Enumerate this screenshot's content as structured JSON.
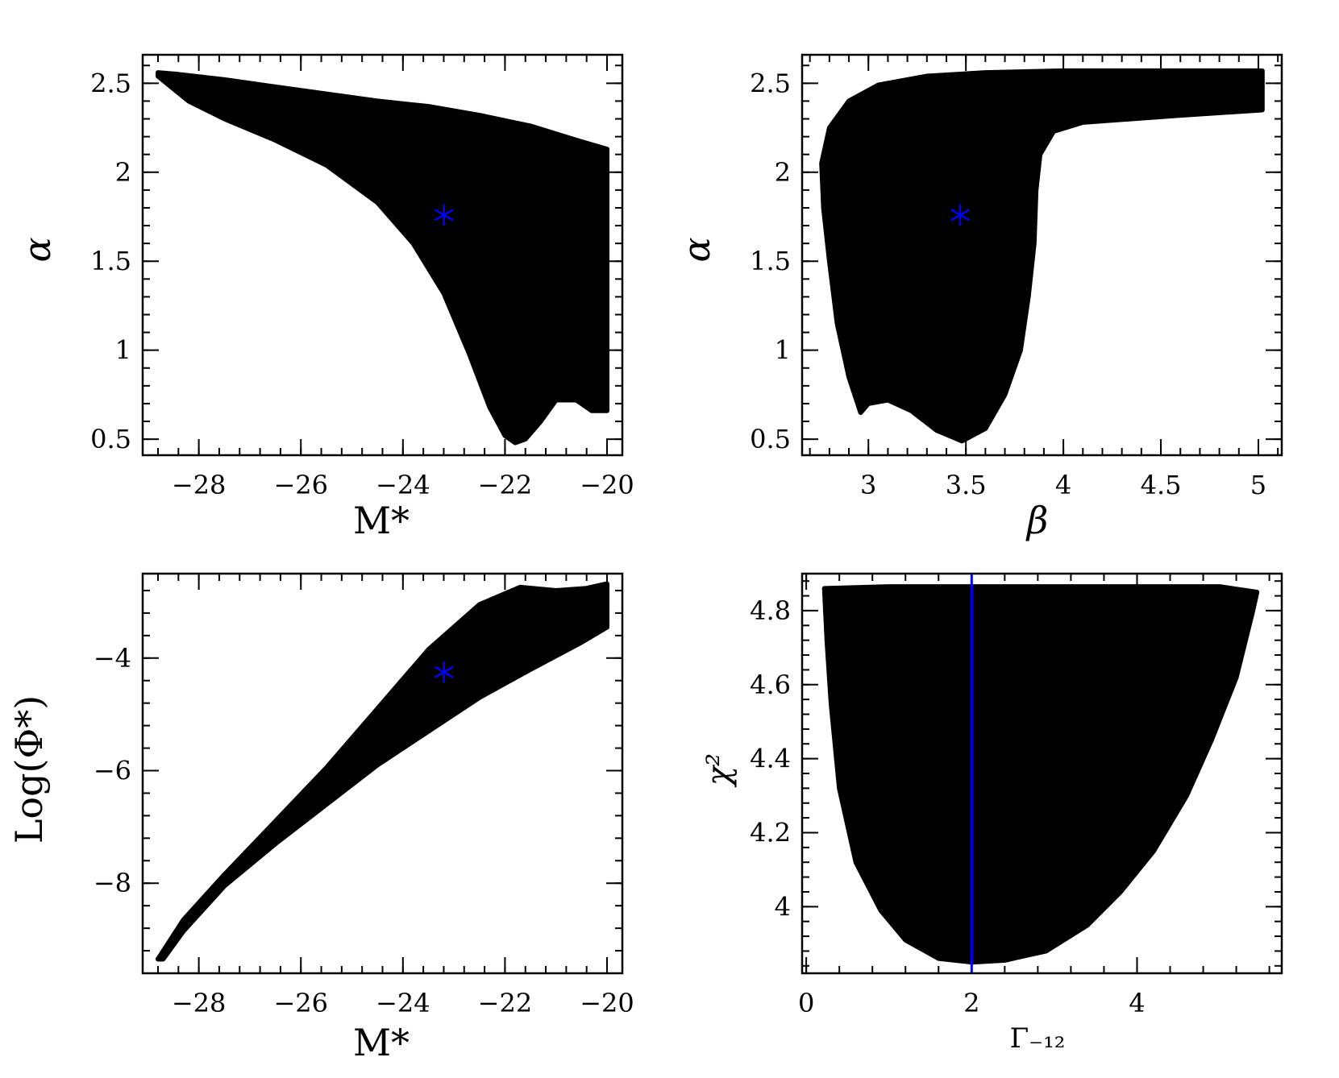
{
  "chart_data": [
    {
      "type": "scatter",
      "xlabel": "M*",
      "ylabel": "α",
      "xlim": [
        -29.1,
        -19.7
      ],
      "ylim": [
        0.41,
        2.66
      ],
      "xticks": [
        -28,
        -26,
        -24,
        -22,
        -20
      ],
      "xtick_labels": [
        "−28",
        "−26",
        "−24",
        "−22",
        "−20"
      ],
      "yticks": [
        0.5,
        1,
        1.5,
        2,
        2.5
      ],
      "ytick_labels": [
        "0.5",
        "1",
        "1.5",
        "2",
        "2.5"
      ],
      "region_color": "#000000",
      "region": [
        [
          -28.8,
          2.56
        ],
        [
          -28.4,
          2.55
        ],
        [
          -27.5,
          2.52
        ],
        [
          -26.5,
          2.48
        ],
        [
          -25.5,
          2.44
        ],
        [
          -24.5,
          2.4
        ],
        [
          -23.5,
          2.37
        ],
        [
          -22.5,
          2.32
        ],
        [
          -21.5,
          2.26
        ],
        [
          -20.6,
          2.18
        ],
        [
          -20.0,
          2.13
        ],
        [
          -20.0,
          0.66
        ],
        [
          -20.3,
          0.66
        ],
        [
          -20.6,
          0.72
        ],
        [
          -21.0,
          0.72
        ],
        [
          -21.3,
          0.6
        ],
        [
          -21.6,
          0.5
        ],
        [
          -21.8,
          0.48
        ],
        [
          -22.0,
          0.52
        ],
        [
          -22.3,
          0.68
        ],
        [
          -22.7,
          0.98
        ],
        [
          -23.2,
          1.32
        ],
        [
          -23.8,
          1.6
        ],
        [
          -24.5,
          1.83
        ],
        [
          -25.5,
          2.04
        ],
        [
          -26.5,
          2.18
        ],
        [
          -27.5,
          2.3
        ],
        [
          -28.2,
          2.4
        ],
        [
          -28.8,
          2.54
        ]
      ],
      "best_fit": {
        "x": -23.2,
        "y": 1.76,
        "color": "#0000ff"
      }
    },
    {
      "type": "scatter",
      "xlabel": "β",
      "ylabel": "α",
      "xlim": [
        2.66,
        5.12
      ],
      "ylim": [
        0.41,
        2.66
      ],
      "xticks": [
        3,
        3.5,
        4,
        4.5,
        5
      ],
      "xtick_labels": [
        "3",
        "3.5",
        "4",
        "4.5",
        "5"
      ],
      "yticks": [
        0.5,
        1,
        1.5,
        2,
        2.5
      ],
      "ytick_labels": [
        "0.5",
        "1",
        "1.5",
        "2",
        "2.5"
      ],
      "region_color": "#000000",
      "region": [
        [
          2.76,
          2.05
        ],
        [
          2.8,
          2.25
        ],
        [
          2.9,
          2.4
        ],
        [
          3.05,
          2.49
        ],
        [
          3.3,
          2.54
        ],
        [
          3.6,
          2.56
        ],
        [
          4.0,
          2.57
        ],
        [
          5.02,
          2.57
        ],
        [
          5.02,
          2.35
        ],
        [
          4.6,
          2.32
        ],
        [
          4.1,
          2.28
        ],
        [
          3.95,
          2.23
        ],
        [
          3.88,
          2.1
        ],
        [
          3.86,
          1.9
        ],
        [
          3.85,
          1.6
        ],
        [
          3.82,
          1.3
        ],
        [
          3.78,
          1.0
        ],
        [
          3.7,
          0.75
        ],
        [
          3.6,
          0.56
        ],
        [
          3.48,
          0.49
        ],
        [
          3.35,
          0.55
        ],
        [
          3.22,
          0.66
        ],
        [
          3.1,
          0.72
        ],
        [
          3.0,
          0.7
        ],
        [
          2.96,
          0.65
        ],
        [
          2.9,
          0.85
        ],
        [
          2.84,
          1.15
        ],
        [
          2.8,
          1.5
        ],
        [
          2.77,
          1.8
        ]
      ],
      "best_fit": {
        "x": 3.47,
        "y": 1.76,
        "color": "#0000ff"
      }
    },
    {
      "type": "scatter",
      "xlabel": "M*",
      "ylabel": "Log(Φ*)",
      "xlim": [
        -29.1,
        -19.7
      ],
      "ylim": [
        -9.6,
        -2.5
      ],
      "xticks": [
        -28,
        -26,
        -24,
        -22,
        -20
      ],
      "xtick_labels": [
        "−28",
        "−26",
        "−24",
        "−22",
        "−20"
      ],
      "yticks": [
        -4,
        -6,
        -8
      ],
      "ytick_labels": [
        "−4",
        "−6",
        "−8"
      ],
      "region_color": "#000000",
      "region": [
        [
          -28.8,
          -9.35
        ],
        [
          -28.3,
          -8.65
        ],
        [
          -27.5,
          -7.85
        ],
        [
          -26.5,
          -6.9
        ],
        [
          -25.5,
          -5.95
        ],
        [
          -24.5,
          -4.9
        ],
        [
          -23.5,
          -3.85
        ],
        [
          -22.5,
          -3.05
        ],
        [
          -21.7,
          -2.74
        ],
        [
          -21.0,
          -2.8
        ],
        [
          -20.4,
          -2.76
        ],
        [
          -20.0,
          -2.68
        ],
        [
          -20.0,
          -3.45
        ],
        [
          -20.5,
          -3.72
        ],
        [
          -21.5,
          -4.2
        ],
        [
          -22.5,
          -4.7
        ],
        [
          -23.5,
          -5.3
        ],
        [
          -24.5,
          -5.9
        ],
        [
          -25.5,
          -6.6
        ],
        [
          -26.5,
          -7.3
        ],
        [
          -27.5,
          -8.05
        ],
        [
          -28.3,
          -8.85
        ],
        [
          -28.7,
          -9.35
        ]
      ],
      "best_fit": {
        "x": -23.2,
        "y": -4.25,
        "color": "#0000ff"
      }
    },
    {
      "type": "scatter",
      "xlabel": "Γ₋₁₂",
      "ylabel": "χ²",
      "xlim": [
        -0.05,
        5.75
      ],
      "ylim": [
        3.82,
        4.9
      ],
      "xticks": [
        0,
        2,
        4
      ],
      "xtick_labels": [
        "0",
        "2",
        "4"
      ],
      "yticks": [
        4,
        4.2,
        4.4,
        4.6,
        4.8
      ],
      "ytick_labels": [
        "4",
        "4.2",
        "4.4",
        "4.6",
        "4.8"
      ],
      "region_color": "#000000",
      "region": [
        [
          0.22,
          4.86
        ],
        [
          1.0,
          4.865
        ],
        [
          2.0,
          4.865
        ],
        [
          3.0,
          4.865
        ],
        [
          4.0,
          4.865
        ],
        [
          5.0,
          4.865
        ],
        [
          5.45,
          4.85
        ],
        [
          5.4,
          4.8
        ],
        [
          5.2,
          4.62
        ],
        [
          4.9,
          4.45
        ],
        [
          4.6,
          4.3
        ],
        [
          4.2,
          4.15
        ],
        [
          3.8,
          4.04
        ],
        [
          3.4,
          3.95
        ],
        [
          2.9,
          3.88
        ],
        [
          2.4,
          3.855
        ],
        [
          2.0,
          3.85
        ],
        [
          1.6,
          3.86
        ],
        [
          1.2,
          3.91
        ],
        [
          0.9,
          3.99
        ],
        [
          0.6,
          4.12
        ],
        [
          0.4,
          4.32
        ],
        [
          0.3,
          4.55
        ],
        [
          0.25,
          4.72
        ]
      ],
      "vline": {
        "x": 2.0,
        "color": "#0000ff"
      }
    }
  ]
}
